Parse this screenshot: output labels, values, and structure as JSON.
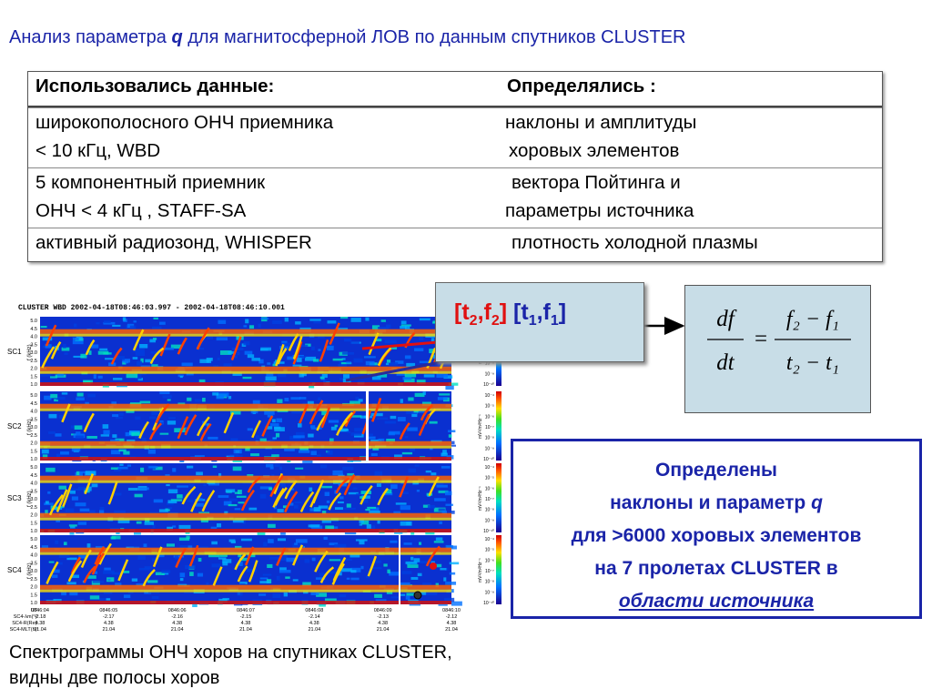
{
  "title": {
    "prefix": "Анализ параметра ",
    "param": "q",
    "suffix": " для магнитосферной ЛОВ по данным спутников CLUSTER"
  },
  "table": {
    "header_left": "Использовались данные:",
    "header_right": "Определялись :",
    "rows": [
      {
        "left": [
          "широкополосного ОНЧ приемника",
          " < 10 кГц,   WBD"
        ],
        "right": [
          "наклоны и амплитуды",
          "хоровых элементов"
        ]
      },
      {
        "left": [
          "5 компонентный приемник",
          "ОНЧ < 4  кГц ,  STAFF-SA"
        ],
        "right": [
          "вектора Пойтинга и",
          "параметры источника"
        ]
      },
      {
        "left": [
          "активный радиозонд,  WHISPER"
        ],
        "right": [
          "плотность холодной плазмы"
        ]
      }
    ]
  },
  "spectrogram": {
    "header": "CLUSTER WBD  2002-04-18T08:46:03.997 - 2002-04-18T08:46:10.001",
    "panels": [
      "SC1",
      "SC2",
      "SC3",
      "SC4"
    ],
    "y_label": "f (kHz)",
    "z_label": "mV²/m²Hz⁻¹",
    "y_ticks": [
      "5.0",
      "4.5",
      "4.0",
      "3.5",
      "3.0",
      "2.5",
      "2.0",
      "1.5",
      "1.0"
    ],
    "z_ticks": [
      "10⁻⁴",
      "10⁻⁵",
      "10⁻⁶",
      "10⁻⁷",
      "10⁻⁸",
      "10⁻⁹",
      "10⁻¹⁰"
    ],
    "x_rows": [
      {
        "label": "UT:",
        "values": [
          "0846:04",
          "0846:05",
          "0846:06",
          "0846:07",
          "0846:08",
          "0846:09",
          "0846:10"
        ]
      },
      {
        "label": "SC4-λm(°):",
        "values": [
          "-2.18",
          "-2.17",
          "-2.16",
          "-2.15",
          "-2.14",
          "-2.13",
          "-2.12"
        ]
      },
      {
        "label": "SC4-R(Re):",
        "values": [
          "4.38",
          "4.38",
          "4.38",
          "4.38",
          "4.38",
          "4.38",
          "4.38"
        ]
      },
      {
        "label": "SC4-MLT(h):",
        "values": [
          "21.04",
          "21.04",
          "21.04",
          "21.04",
          "21.04",
          "21.04",
          "21.04"
        ]
      }
    ]
  },
  "freq_points": {
    "open1": "[t",
    "sub_t2": "2",
    "comma1": ",f",
    "sub_f2": "2",
    "close1": "]",
    "open2": " [t",
    "sub_t1": "1",
    "comma2": ",f",
    "sub_f1": "1",
    "close2": "]"
  },
  "formula": {
    "lhs_num": "df",
    "lhs_den": "dt",
    "equals": "=",
    "rhs_num": "f₂ − f₁",
    "rhs_den": "t₂ − t₁"
  },
  "result": {
    "line1": "Определены",
    "line2": "наклоны и параметр  ",
    "line2_param": "q",
    "line3": "для >6000 хоровых элементов",
    "line4": "на  7 пролетах CLUSTER в",
    "line5": "области источника"
  },
  "caption": {
    "line1": "Спектрограммы ОНЧ хоров на спутниках CLUSTER,",
    "line2": "видны две полосы хоров"
  },
  "colors": {
    "title": "#1a24a8",
    "red_point": "#e01010",
    "box_fill": "#c8dde7"
  }
}
